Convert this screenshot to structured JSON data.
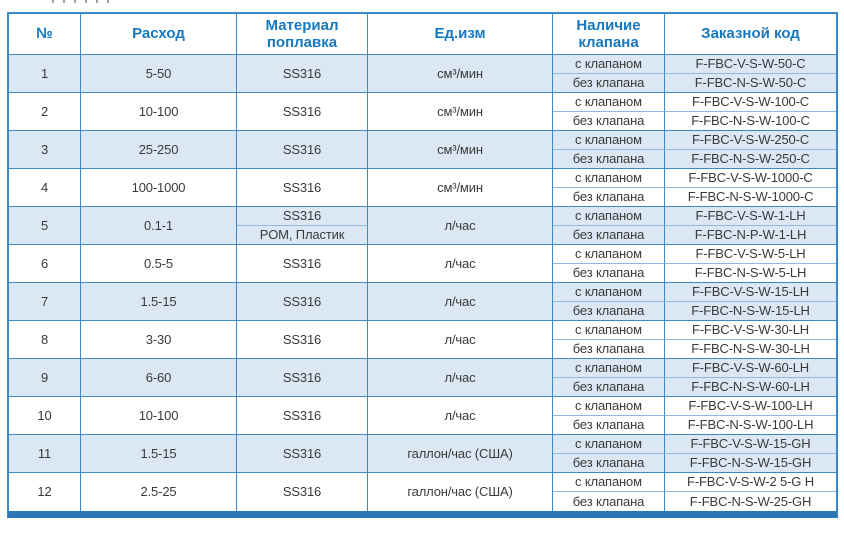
{
  "colors": {
    "header_text": "#1878be",
    "table_border": "#3e88c5",
    "light_divider": "#8fb9de",
    "shaded_row_bg": "#dce7f4",
    "bottom_bar": "#2b76b4",
    "body_text": "#3a3a3a"
  },
  "table": {
    "headers": [
      "№",
      "Расход",
      "Материал поплавка",
      "Ед.изм",
      "Наличие клапана",
      "Заказной код"
    ],
    "valve_with": "с клапаном",
    "valve_without": "без клапана",
    "rows": [
      {
        "num": "1",
        "flow": "5-50",
        "material": "SS316",
        "unit": "см³/мин",
        "code_valve": "F-FBC-V-S-W-50-C",
        "code_no_valve": "F-FBC-N-S-W-50-C"
      },
      {
        "num": "2",
        "flow": "10-100",
        "material": "SS316",
        "unit": "см³/мин",
        "code_valve": "F-FBC-V-S-W-100-C",
        "code_no_valve": "F-FBC-N-S-W-100-C"
      },
      {
        "num": "3",
        "flow": "25-250",
        "material": "SS316",
        "unit": "см³/мин",
        "code_valve": "F-FBC-V-S-W-250-C",
        "code_no_valve": "F-FBC-N-S-W-250-C"
      },
      {
        "num": "4",
        "flow": "100-1000",
        "material": "SS316",
        "unit": "см³/мин",
        "code_valve": "F-FBC-V-S-W-1000-C",
        "code_no_valve": "F-FBC-N-S-W-1000-C"
      },
      {
        "num": "5",
        "flow": "0.1-1",
        "material": "SS316",
        "material2": "POM, Пластик",
        "unit": "л/час",
        "code_valve": "F-FBC-V-S-W-1-LH",
        "code_no_valve": "F-FBC-N-P-W-1-LH"
      },
      {
        "num": "6",
        "flow": "0.5-5",
        "material": "SS316",
        "unit": "л/час",
        "code_valve": "F-FBC-V-S-W-5-LH",
        "code_no_valve": "F-FBC-N-S-W-5-LH"
      },
      {
        "num": "7",
        "flow": "1.5-15",
        "material": "SS316",
        "unit": "л/час",
        "code_valve": "F-FBC-V-S-W-15-LH",
        "code_no_valve": "F-FBC-N-S-W-15-LH"
      },
      {
        "num": "8",
        "flow": "3-30",
        "material": "SS316",
        "unit": "л/час",
        "code_valve": "F-FBC-V-S-W-30-LH",
        "code_no_valve": "F-FBC-N-S-W-30-LH"
      },
      {
        "num": "9",
        "flow": "6-60",
        "material": "SS316",
        "unit": "л/час",
        "code_valve": "F-FBC-V-S-W-60-LH",
        "code_no_valve": "F-FBC-N-S-W-60-LH"
      },
      {
        "num": "10",
        "flow": "10-100",
        "material": "SS316",
        "unit": "л/час",
        "code_valve": "F-FBC-V-S-W-100-LH",
        "code_no_valve": "F-FBC-N-S-W-100-LH"
      },
      {
        "num": "11",
        "flow": "1.5-15",
        "material": "SS316",
        "unit": "галлон/час (США)",
        "code_valve": "F-FBC-V-S-W-15-GH",
        "code_no_valve": "F-FBC-N-S-W-15-GH"
      },
      {
        "num": "12",
        "flow": "2.5-25",
        "material": "SS316",
        "unit": "галлон/час (США)",
        "code_valve": "F-FBC-V-S-W-2 5-G H",
        "code_no_valve": "F-FBC-N-S-W-25-GH"
      }
    ]
  }
}
